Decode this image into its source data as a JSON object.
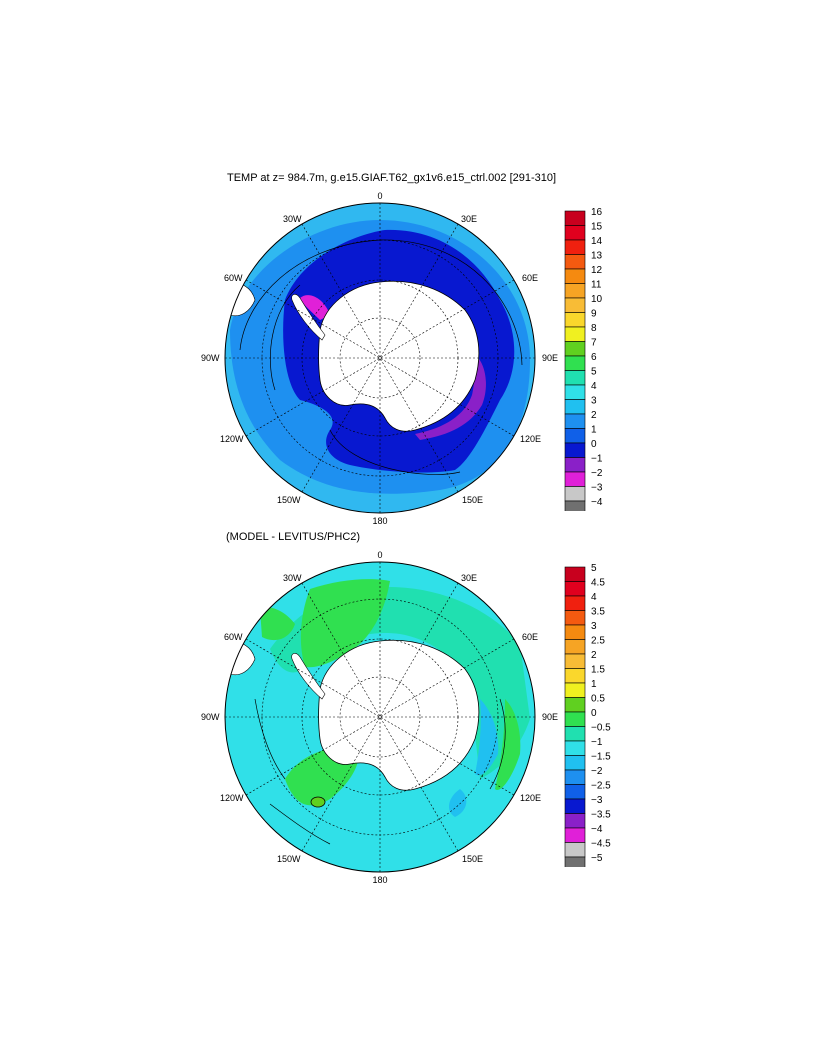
{
  "panels": [
    {
      "title": "TEMP at z= 984.7m, g.e15.GIAF.T62_gx1v6.e15_ctrl.002 [291-310]",
      "lon_labels": {
        "top": "0",
        "bottom": "180",
        "left": "90W",
        "right": "90E",
        "w30": "30W",
        "e30": "30E",
        "w60": "60W",
        "e60": "60E",
        "w120": "120W",
        "e120": "120E",
        "w150": "150W",
        "e150": "150E"
      },
      "colorbar": {
        "labels": [
          "16",
          "15",
          "14",
          "13",
          "12",
          "11",
          "10",
          "9",
          "8",
          "7",
          "6",
          "5",
          "4",
          "3",
          "2",
          "1",
          "0",
          "−1",
          "−2",
          "−3",
          "−4"
        ],
        "colors": [
          "#c8001e",
          "#e0001e",
          "#f0200f",
          "#f45a10",
          "#f58a10",
          "#f6a424",
          "#f8bc36",
          "#fad72c",
          "#f0f020",
          "#60d020",
          "#30e050",
          "#20e0b0",
          "#30e0e8",
          "#20c0f0",
          "#1e90f0",
          "#1060e8",
          "#0818d0",
          "#8a20c8",
          "#e020d8",
          "#c8c8c8",
          "#707070"
        ]
      }
    },
    {
      "title": "(MODEL - LEVITUS/PHC2)",
      "lon_labels": {
        "top": "0",
        "bottom": "180",
        "left": "90W",
        "right": "90E",
        "w30": "30W",
        "e30": "30E",
        "w60": "60W",
        "e60": "60E",
        "w120": "120W",
        "e120": "120E",
        "w150": "150W",
        "e150": "150E"
      },
      "colorbar": {
        "labels": [
          "5",
          "4.5",
          "4",
          "3.5",
          "3",
          "2.5",
          "2",
          "1.5",
          "1",
          "0.5",
          "0",
          "−0.5",
          "−1",
          "−1.5",
          "−2",
          "−2.5",
          "−3",
          "−3.5",
          "−4",
          "−4.5",
          "−5"
        ],
        "colors": [
          "#c8001e",
          "#e0001e",
          "#f0200f",
          "#f45a10",
          "#f58a10",
          "#f6a424",
          "#f8bc36",
          "#fad72c",
          "#f0f020",
          "#60d020",
          "#30e050",
          "#20e0b0",
          "#30e0e8",
          "#20c0f0",
          "#1e90f0",
          "#1060e8",
          "#0818d0",
          "#8a20c8",
          "#e020d8",
          "#c8c8c8",
          "#707070"
        ]
      }
    }
  ],
  "map_fill": {
    "panel1": {
      "outer": "#30b8f0",
      "mid": "#1e90f0",
      "inner": "#0818d0",
      "purple": "#8a20c8",
      "magenta": "#e020d8",
      "land": "#ffffff"
    },
    "panel2": {
      "cyan": "#30e0e8",
      "teal": "#20e0b0",
      "green": "#30e050",
      "blue": "#20c0f0",
      "land": "#ffffff"
    }
  }
}
